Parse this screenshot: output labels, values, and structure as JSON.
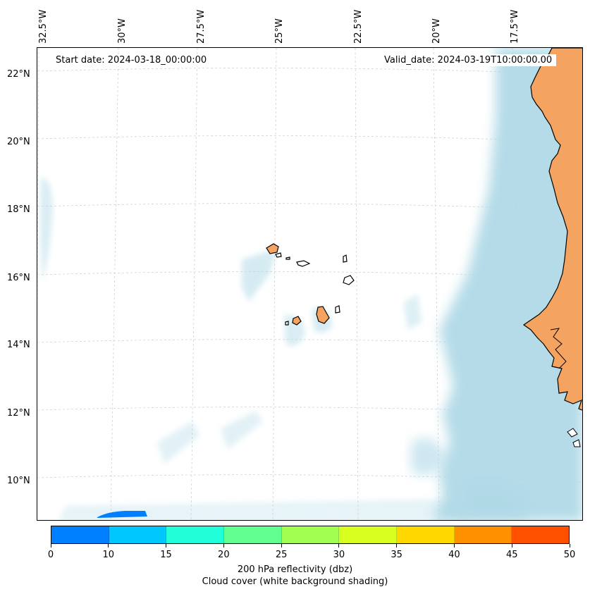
{
  "header": {
    "start_date": "Start date: 2024-03-18_00:00:00",
    "valid_date": "Valid_date: 2024-03-19T10:00:00.00"
  },
  "axes": {
    "lon_labels": [
      "32.5°W",
      "30°W",
      "27.5°W",
      "25°W",
      "22.5°W",
      "20°W",
      "17.5°W"
    ],
    "lat_labels": [
      "22°N",
      "20°N",
      "18°N",
      "16°N",
      "14°N",
      "12°N",
      "10°N"
    ]
  },
  "colorbar": {
    "ticks": [
      "0",
      "10",
      "15",
      "20",
      "25",
      "30",
      "35",
      "40",
      "45",
      "50"
    ],
    "colors": [
      "#0080ff",
      "#00c8ff",
      "#20ffd8",
      "#60ff90",
      "#a0ff50",
      "#d8ff20",
      "#ffd800",
      "#ff9000",
      "#ff5000"
    ],
    "label": "200 hPa reflectivity (dbz)",
    "sublabel": "Cloud cover (white background shading)"
  },
  "colors": {
    "land": "#f4a460",
    "cloud": "#add8e6",
    "coast": "#000000",
    "reflectivity": "#0080ff"
  }
}
